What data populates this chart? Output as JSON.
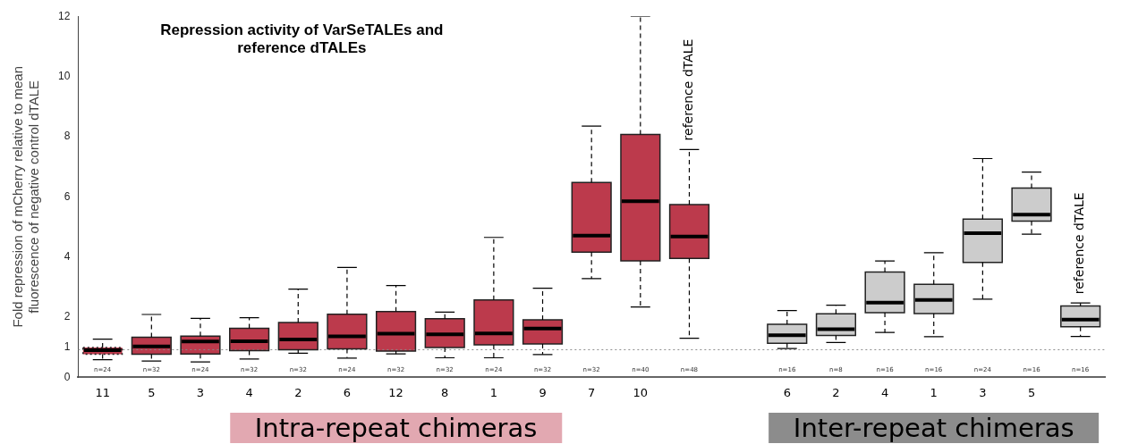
{
  "chart_data": {
    "type": "box",
    "title": "Repression activity of VarSeTALEs and reference dTALEs",
    "ylabel": "Fold repression of mCherry relative to mean fluorescence of negative control dTALE",
    "categories": [
      "11",
      "5",
      "3",
      "4",
      "2",
      "6",
      "12",
      "8",
      "1",
      "9",
      "7",
      "10",
      null,
      null,
      "6",
      "2",
      "4",
      "1",
      "3",
      "5",
      null
    ],
    "boxes": [
      {
        "low": 0.59,
        "q1": 0.77,
        "median": 0.9,
        "q3": 0.99,
        "high": 1.27
      },
      {
        "low": 0.54,
        "q1": 0.77,
        "median": 1.03,
        "q3": 1.33,
        "high": 2.09
      },
      {
        "low": 0.51,
        "q1": 0.78,
        "median": 1.19,
        "q3": 1.37,
        "high": 1.96
      },
      {
        "low": 0.61,
        "q1": 0.89,
        "median": 1.2,
        "q3": 1.63,
        "high": 1.98
      },
      {
        "low": 0.8,
        "q1": 0.92,
        "median": 1.26,
        "q3": 1.82,
        "high": 2.93
      },
      {
        "low": 0.64,
        "q1": 0.95,
        "median": 1.36,
        "q3": 2.1,
        "high": 3.65
      },
      {
        "low": 0.78,
        "q1": 0.87,
        "median": 1.45,
        "q3": 2.19,
        "high": 3.05
      },
      {
        "low": 0.65,
        "q1": 0.99,
        "median": 1.43,
        "q3": 1.95,
        "high": 2.17
      },
      {
        "low": 0.65,
        "q1": 1.08,
        "median": 1.46,
        "q3": 2.57,
        "high": 4.65
      },
      {
        "low": 0.76,
        "q1": 1.11,
        "median": 1.62,
        "q3": 1.91,
        "high": 2.96
      },
      {
        "low": 3.28,
        "q1": 4.16,
        "median": 4.71,
        "q3": 6.48,
        "high": 8.35
      },
      {
        "low": 2.34,
        "q1": 3.87,
        "median": 5.85,
        "q3": 8.07,
        "high": 12
      },
      {
        "low": 1.3,
        "q1": 3.95,
        "median": 4.68,
        "q3": 5.74,
        "high": 7.57
      },
      null,
      {
        "low": 0.96,
        "q1": 1.13,
        "median": 1.4,
        "q3": 1.76,
        "high": 2.22
      },
      {
        "low": 1.16,
        "q1": 1.39,
        "median": 1.6,
        "q3": 2.11,
        "high": 2.4
      },
      {
        "low": 1.49,
        "q1": 2.15,
        "median": 2.48,
        "q3": 3.5,
        "high": 3.87
      },
      {
        "low": 1.35,
        "q1": 2.12,
        "median": 2.57,
        "q3": 3.09,
        "high": 4.14
      },
      {
        "low": 2.6,
        "q1": 3.82,
        "median": 4.79,
        "q3": 5.26,
        "high": 7.27
      },
      {
        "low": 4.76,
        "q1": 5.19,
        "median": 5.41,
        "q3": 6.29,
        "high": 6.82
      },
      {
        "low": 1.36,
        "q1": 1.68,
        "median": 1.92,
        "q3": 2.37,
        "high": 2.47
      }
    ],
    "colors": [
      "#bc3a4c",
      "#bc3a4c",
      "#bc3a4c",
      "#bc3a4c",
      "#bc3a4c",
      "#bc3a4c",
      "#bc3a4c",
      "#bc3a4c",
      "#bc3a4c",
      "#bc3a4c",
      "#bc3a4c",
      "#bc3a4c",
      "#bc3a4c",
      null,
      "#cccccc",
      "#cccccc",
      "#cccccc",
      "#cccccc",
      "#cccccc",
      "#cccccc",
      "#cccccc"
    ],
    "value_labels": [
      "n=24",
      "n=32",
      "n=24",
      "n=32",
      "n=32",
      "n=24",
      "n=32",
      "n=32",
      "n=24",
      "n=32",
      "n=32",
      "n=40",
      "n=48",
      null,
      "n=16",
      "n=8",
      "n=16",
      "n=16",
      "n=24",
      "n=16",
      "n=16"
    ],
    "ylim": [
      0,
      12
    ],
    "yticks": [
      0,
      1,
      2,
      4,
      6,
      8,
      10,
      12
    ],
    "ref_lines": [
      {
        "axis": "y",
        "value": 0.92,
        "color": "#888888",
        "line_style": "dotted"
      }
    ],
    "annotations": [
      "reference dTALE",
      "reference dTALE",
      "Intra-repeat chimeras",
      "Inter-repeat chimeras"
    ],
    "legend": false
  }
}
